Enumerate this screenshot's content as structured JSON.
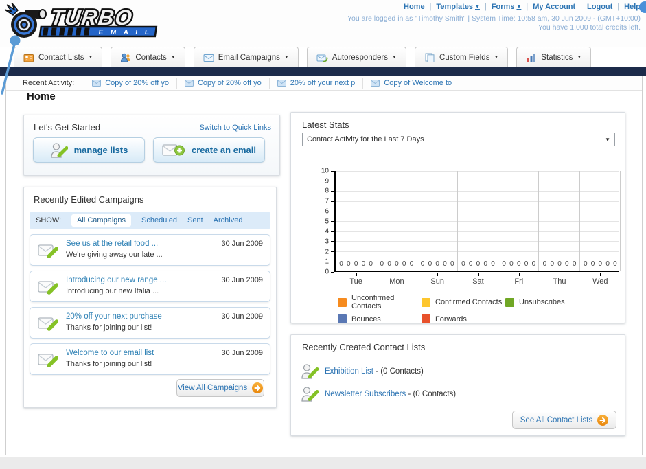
{
  "header": {
    "brand": {
      "title": "TURBO",
      "subtitle": "E M A I L"
    },
    "separator": "|",
    "nav": [
      {
        "label": "Home",
        "dropdown": false
      },
      {
        "label": "Templates",
        "dropdown": true
      },
      {
        "label": "Forms",
        "dropdown": true
      },
      {
        "label": "My Account",
        "dropdown": false
      },
      {
        "label": "Logout",
        "dropdown": false
      },
      {
        "label": "Help",
        "dropdown": false
      }
    ],
    "login_line": "You are logged in as \"Timothy Smith\" | System Time: 10:58 am, 30 Jun 2009 - (GMT+10:00)",
    "credits_line": "You have 1,000 total credits left."
  },
  "tabs": [
    {
      "label": "Contact Lists",
      "icon": "contact-lists-icon"
    },
    {
      "label": "Contacts",
      "icon": "contacts-icon"
    },
    {
      "label": "Email Campaigns",
      "icon": "email-campaigns-icon"
    },
    {
      "label": "Autoresponders",
      "icon": "autoresponders-icon"
    },
    {
      "label": "Custom Fields",
      "icon": "custom-fields-icon"
    },
    {
      "label": "Statistics",
      "icon": "statistics-icon"
    }
  ],
  "recent_activity": {
    "label": "Recent Activity:",
    "items": [
      "Copy of 20% off yo",
      "Copy of 20% off yo",
      "20% off your next p",
      "Copy of Welcome to"
    ]
  },
  "page_title": "Home",
  "get_started": {
    "title": "Let's Get Started",
    "switch_link": "Switch to Quick Links",
    "manage_lists_label": "manage lists",
    "create_email_label": "create an email"
  },
  "campaigns": {
    "title": "Recently Edited Campaigns",
    "show_label": "SHOW:",
    "filters": [
      "All Campaigns",
      "Scheduled",
      "Sent",
      "Archived"
    ],
    "active_filter": "All Campaigns",
    "items": [
      {
        "title": "See us at the retail food ...",
        "subtitle": "We're giving away our late ...",
        "date": "30 Jun 2009"
      },
      {
        "title": "Introducing our new range ...",
        "subtitle": "Introducing our new Italia ...",
        "date": "30 Jun 2009"
      },
      {
        "title": "20% off your next purchase",
        "subtitle": "Thanks for joining our list!",
        "date": "30 Jun 2009"
      },
      {
        "title": "Welcome to our email list",
        "subtitle": "Thanks for joining our list!",
        "date": "30 Jun 2009"
      }
    ],
    "view_all_label": "View All Campaigns"
  },
  "stats": {
    "title": "Latest Stats",
    "dropdown_value": "Contact Activity for the Last 7 Days"
  },
  "chart_data": {
    "type": "bar",
    "title": "Contact Activity for the Last 7 Days",
    "categories": [
      "Tue",
      "Mon",
      "Sun",
      "Sat",
      "Fri",
      "Thu",
      "Wed"
    ],
    "series": [
      {
        "name": "Unconfirmed Contacts",
        "color": "#f68b1f",
        "values": [
          0,
          0,
          0,
          0,
          0,
          0,
          0
        ]
      },
      {
        "name": "Confirmed Contacts",
        "color": "#fdc62e",
        "values": [
          0,
          0,
          0,
          0,
          0,
          0,
          0
        ]
      },
      {
        "name": "Unsubscribes",
        "color": "#70a725",
        "values": [
          0,
          0,
          0,
          0,
          0,
          0,
          0
        ]
      },
      {
        "name": "Bounces",
        "color": "#5a78b4",
        "values": [
          0,
          0,
          0,
          0,
          0,
          0,
          0
        ]
      },
      {
        "name": "Forwards",
        "color": "#e8512b",
        "values": [
          0,
          0,
          0,
          0,
          0,
          0,
          0
        ]
      }
    ],
    "ylim": [
      0,
      10
    ],
    "y_tick_step": 1,
    "grid": true,
    "value_labels_shown": true,
    "legend_position": "bottom"
  },
  "contact_lists": {
    "title": "Recently Created Contact Lists",
    "items": [
      {
        "name": "Exhibition List",
        "detail": "- (0 Contacts)"
      },
      {
        "name": "Newsletter Subscribers",
        "detail": "- (0 Contacts)"
      }
    ],
    "see_all_label": "See All Contact Lists"
  }
}
